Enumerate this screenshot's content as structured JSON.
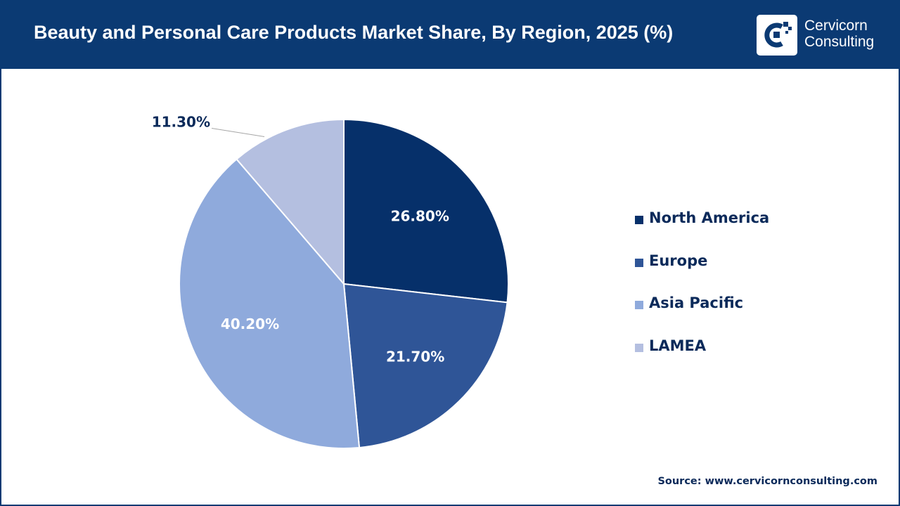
{
  "header": {
    "title": "Beauty and Personal Care Products Market Share, By Region, 2025 (%)",
    "logo_line1": "Cervicorn",
    "logo_line2": "Consulting"
  },
  "colors": {
    "header_bg": "#0b3a73",
    "label_dark": "#0b2a5a",
    "label_light": "#ffffff"
  },
  "chart_data": {
    "type": "pie",
    "title": "Beauty and Personal Care Products Market Share, By Region, 2025 (%)",
    "categories": [
      "North America",
      "Europe",
      "Asia Pacific",
      "LAMEA"
    ],
    "values": [
      26.8,
      21.7,
      40.2,
      11.3
    ],
    "labels": [
      "26.80%",
      "21.70%",
      "40.20%",
      "11.30%"
    ],
    "colors": [
      "#06306a",
      "#2f5597",
      "#8faadc",
      "#b4bfe0"
    ],
    "start_angle": "12 o'clock",
    "direction": "clockwise",
    "legend_position": "right"
  },
  "footer": {
    "source": "Source: www.cervicornconsulting.com"
  }
}
